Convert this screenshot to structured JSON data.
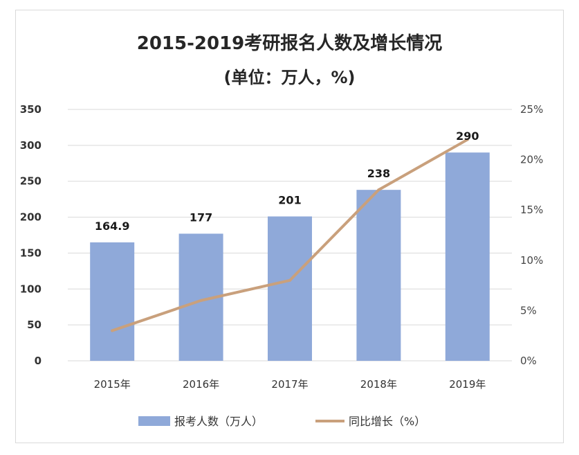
{
  "chart_data": {
    "type": "bar+line",
    "title": "2015-2019考研报名人数及增长情况",
    "subtitle": "(单位：万人，%)",
    "categories": [
      "2015年",
      "2016年",
      "2017年",
      "2018年",
      "2019年"
    ],
    "series": [
      {
        "name": "报考人数（万人）",
        "type": "bar",
        "axis": "left",
        "values": [
          164.9,
          177,
          201,
          238,
          290
        ],
        "data_labels": [
          "164.9",
          "177",
          "201",
          "238",
          "290"
        ]
      },
      {
        "name": "同比增长（%）",
        "type": "line",
        "axis": "right",
        "values": [
          3.0,
          6.0,
          8.0,
          17.0,
          22.0
        ]
      }
    ],
    "y_left": {
      "ylim": [
        0,
        350
      ],
      "ticks": [
        "0",
        "50",
        "100",
        "150",
        "200",
        "250",
        "300",
        "350"
      ]
    },
    "y_right": {
      "ylim": [
        0,
        25
      ],
      "ticks": [
        "0%",
        "5%",
        "10%",
        "15%",
        "20%",
        "25%"
      ]
    },
    "grid": true,
    "legend": "bottom",
    "colors": {
      "bar": "#8fa9d9",
      "line": "#c9a07c",
      "grid": "#d9d9d9"
    }
  }
}
